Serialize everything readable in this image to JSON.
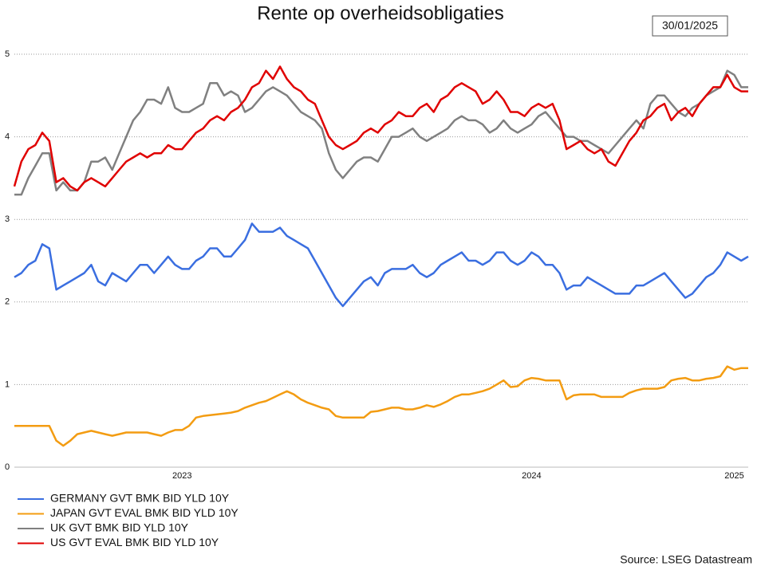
{
  "chart_data": {
    "type": "line",
    "title": "Rente op overheidsobligaties",
    "date_label": "30/01/2025",
    "source": "Source: LSEG Datastream",
    "categories": [
      null,
      null,
      null,
      null,
      null,
      null,
      null,
      null,
      null,
      null,
      null,
      null,
      null,
      null,
      null,
      null,
      null,
      null,
      null,
      null,
      null,
      null,
      null,
      null,
      "2023",
      null,
      null,
      null,
      null,
      null,
      null,
      null,
      null,
      null,
      null,
      null,
      null,
      null,
      null,
      null,
      null,
      null,
      null,
      null,
      null,
      null,
      null,
      null,
      null,
      null,
      null,
      null,
      null,
      null,
      null,
      null,
      null,
      null,
      null,
      null,
      null,
      null,
      null,
      null,
      null,
      null,
      null,
      null,
      null,
      null,
      null,
      null,
      null,
      null,
      "2024",
      null,
      null,
      null,
      null,
      null,
      null,
      null,
      null,
      null,
      null,
      null,
      null,
      null,
      null,
      null,
      null,
      null,
      null,
      null,
      null,
      null,
      null,
      null,
      null,
      null,
      null,
      null,
      null,
      "2025",
      null,
      null
    ],
    "ylim": [
      0,
      5
    ],
    "yticks": [
      0,
      1,
      2,
      3,
      4,
      5
    ],
    "grid": true,
    "legend": "bottom-left",
    "series": [
      {
        "name": "GERMANY GVT BMK BID YLD 10Y",
        "color": "#3a6ee0",
        "values": [
          2.3,
          2.35,
          2.45,
          2.5,
          2.7,
          2.65,
          2.15,
          2.2,
          2.25,
          2.3,
          2.35,
          2.45,
          2.25,
          2.2,
          2.35,
          2.3,
          2.25,
          2.35,
          2.45,
          2.45,
          2.35,
          2.45,
          2.55,
          2.45,
          2.4,
          2.4,
          2.5,
          2.55,
          2.65,
          2.65,
          2.55,
          2.55,
          2.65,
          2.75,
          2.95,
          2.85,
          2.85,
          2.85,
          2.9,
          2.8,
          2.75,
          2.7,
          2.65,
          2.5,
          2.35,
          2.2,
          2.05,
          1.95,
          2.05,
          2.15,
          2.25,
          2.3,
          2.2,
          2.35,
          2.4,
          2.4,
          2.4,
          2.45,
          2.35,
          2.3,
          2.35,
          2.45,
          2.5,
          2.55,
          2.6,
          2.5,
          2.5,
          2.45,
          2.5,
          2.6,
          2.6,
          2.5,
          2.45,
          2.5,
          2.6,
          2.55,
          2.45,
          2.45,
          2.35,
          2.15,
          2.2,
          2.2,
          2.3,
          2.25,
          2.2,
          2.15,
          2.1,
          2.1,
          2.1,
          2.2,
          2.2,
          2.25,
          2.3,
          2.35,
          2.25,
          2.15,
          2.05,
          2.1,
          2.2,
          2.3,
          2.35,
          2.45,
          2.6,
          2.55,
          2.5,
          2.55
        ]
      },
      {
        "name": "JAPAN GVT EVAL BMK BID YLD 10Y",
        "color": "#f39c12",
        "values": [
          0.5,
          0.5,
          0.5,
          0.5,
          0.5,
          0.5,
          0.32,
          0.26,
          0.32,
          0.4,
          0.42,
          0.44,
          0.42,
          0.4,
          0.38,
          0.4,
          0.42,
          0.42,
          0.42,
          0.42,
          0.4,
          0.38,
          0.42,
          0.45,
          0.45,
          0.5,
          0.6,
          0.62,
          0.63,
          0.64,
          0.65,
          0.66,
          0.68,
          0.72,
          0.75,
          0.78,
          0.8,
          0.84,
          0.88,
          0.92,
          0.88,
          0.82,
          0.78,
          0.75,
          0.72,
          0.7,
          0.62,
          0.6,
          0.6,
          0.6,
          0.6,
          0.67,
          0.68,
          0.7,
          0.72,
          0.72,
          0.7,
          0.7,
          0.72,
          0.75,
          0.73,
          0.76,
          0.8,
          0.85,
          0.88,
          0.88,
          0.9,
          0.92,
          0.95,
          1.0,
          1.05,
          0.97,
          0.98,
          1.05,
          1.08,
          1.07,
          1.05,
          1.05,
          1.05,
          0.82,
          0.87,
          0.88,
          0.88,
          0.88,
          0.85,
          0.85,
          0.85,
          0.85,
          0.9,
          0.93,
          0.95,
          0.95,
          0.95,
          0.97,
          1.05,
          1.07,
          1.08,
          1.05,
          1.05,
          1.07,
          1.08,
          1.1,
          1.22,
          1.18,
          1.2,
          1.2
        ]
      },
      {
        "name": "UK GVT BMK BID YLD 10Y",
        "color": "#808080",
        "values": [
          3.3,
          3.3,
          3.5,
          3.65,
          3.8,
          3.8,
          3.35,
          3.45,
          3.35,
          3.35,
          3.45,
          3.7,
          3.7,
          3.75,
          3.6,
          3.8,
          4.0,
          4.2,
          4.3,
          4.45,
          4.45,
          4.4,
          4.6,
          4.35,
          4.3,
          4.3,
          4.35,
          4.4,
          4.65,
          4.65,
          4.5,
          4.55,
          4.5,
          4.3,
          4.35,
          4.45,
          4.55,
          4.6,
          4.55,
          4.5,
          4.4,
          4.3,
          4.25,
          4.2,
          4.1,
          3.8,
          3.6,
          3.5,
          3.6,
          3.7,
          3.75,
          3.75,
          3.7,
          3.85,
          4.0,
          4.0,
          4.05,
          4.1,
          4.0,
          3.95,
          4.0,
          4.05,
          4.1,
          4.2,
          4.25,
          4.2,
          4.2,
          4.15,
          4.05,
          4.1,
          4.2,
          4.1,
          4.05,
          4.1,
          4.15,
          4.25,
          4.3,
          4.2,
          4.1,
          4.0,
          4.0,
          3.95,
          3.95,
          3.9,
          3.85,
          3.8,
          3.9,
          4.0,
          4.1,
          4.2,
          4.1,
          4.4,
          4.5,
          4.5,
          4.4,
          4.3,
          4.25,
          4.35,
          4.4,
          4.5,
          4.55,
          4.6,
          4.8,
          4.75,
          4.6,
          4.6
        ]
      },
      {
        "name": "US GVT EVAL BMK BID YLD 10Y",
        "color": "#e00000",
        "values": [
          3.4,
          3.7,
          3.85,
          3.9,
          4.05,
          3.95,
          3.45,
          3.5,
          3.4,
          3.35,
          3.45,
          3.5,
          3.45,
          3.4,
          3.5,
          3.6,
          3.7,
          3.75,
          3.8,
          3.75,
          3.8,
          3.8,
          3.9,
          3.85,
          3.85,
          3.95,
          4.05,
          4.1,
          4.2,
          4.25,
          4.2,
          4.3,
          4.35,
          4.45,
          4.6,
          4.65,
          4.8,
          4.7,
          4.85,
          4.7,
          4.6,
          4.55,
          4.45,
          4.4,
          4.2,
          4.0,
          3.9,
          3.85,
          3.9,
          3.95,
          4.05,
          4.1,
          4.05,
          4.15,
          4.2,
          4.3,
          4.25,
          4.25,
          4.35,
          4.4,
          4.3,
          4.45,
          4.5,
          4.6,
          4.65,
          4.6,
          4.55,
          4.4,
          4.45,
          4.55,
          4.45,
          4.3,
          4.3,
          4.25,
          4.35,
          4.4,
          4.35,
          4.4,
          4.2,
          3.85,
          3.9,
          3.95,
          3.85,
          3.8,
          3.85,
          3.7,
          3.65,
          3.8,
          3.95,
          4.05,
          4.2,
          4.25,
          4.35,
          4.4,
          4.2,
          4.3,
          4.35,
          4.25,
          4.4,
          4.5,
          4.6,
          4.6,
          4.75,
          4.6,
          4.55,
          4.55
        ]
      }
    ]
  }
}
